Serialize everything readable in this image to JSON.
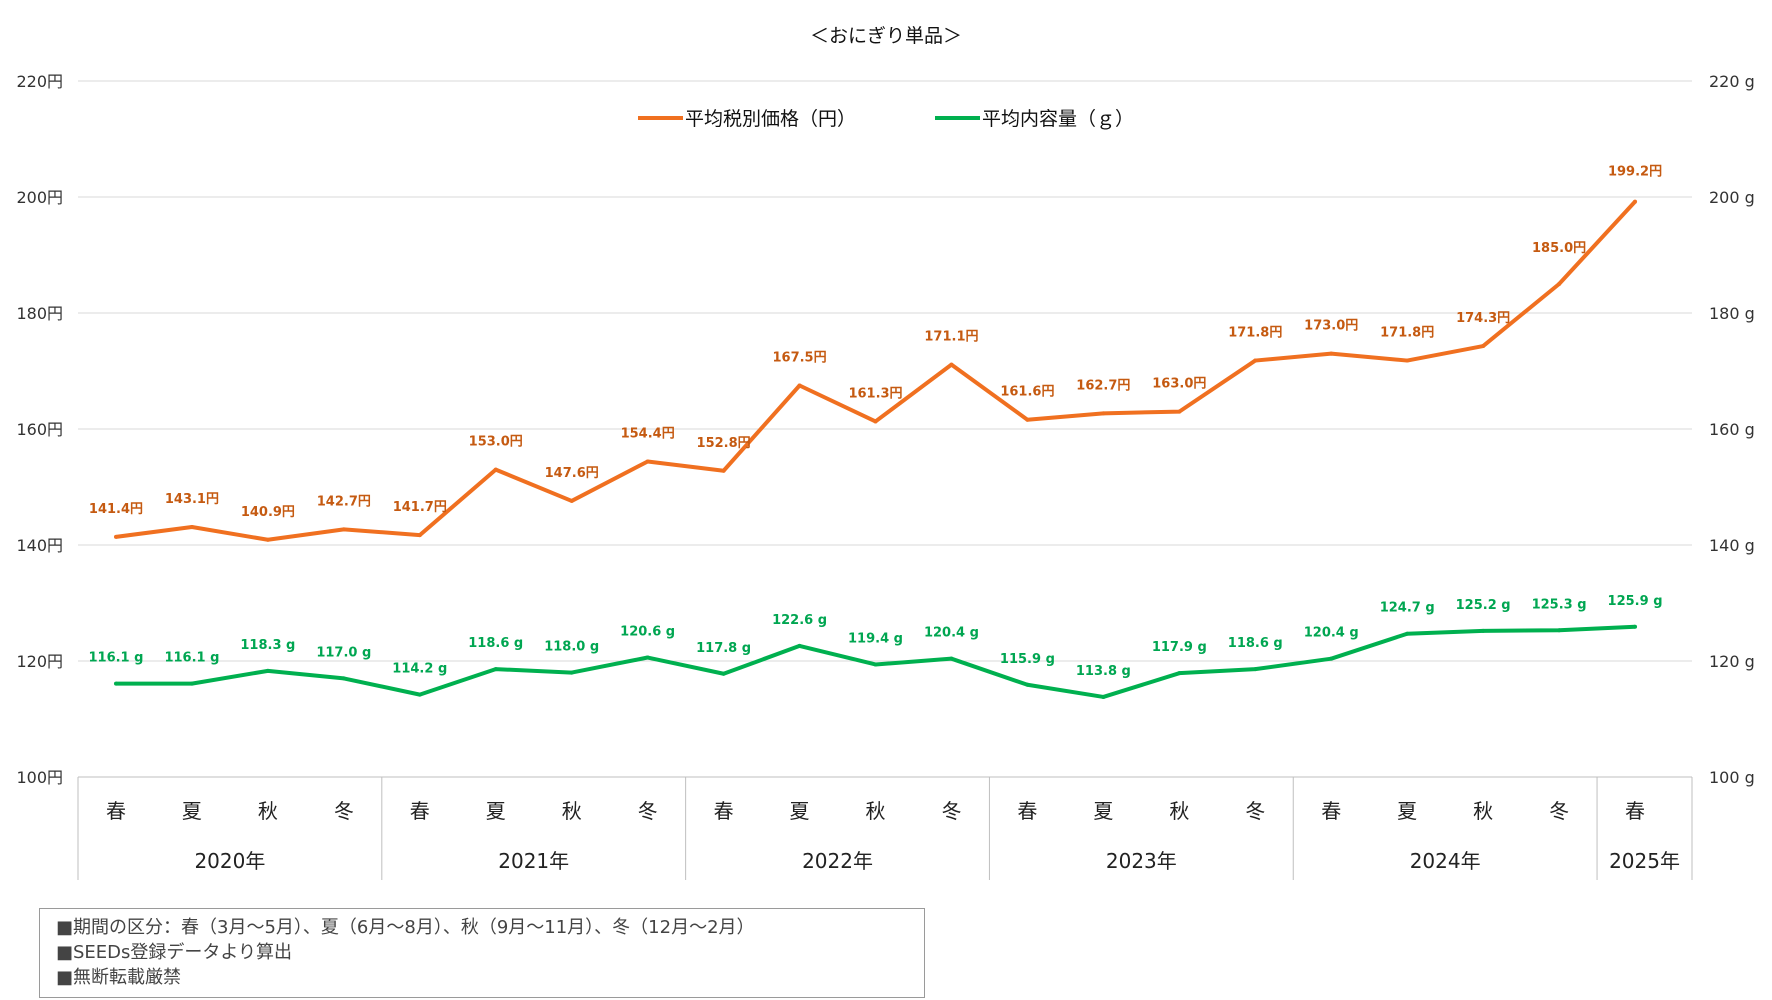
{
  "chart_data": {
    "type": "line",
    "title": "＜おにぎり単品＞",
    "categories": [
      "春",
      "夏",
      "秋",
      "冬",
      "春",
      "夏",
      "秋",
      "冬",
      "春",
      "夏",
      "秋",
      "冬",
      "春",
      "夏",
      "秋",
      "冬",
      "春",
      "夏",
      "秋",
      "冬",
      "春"
    ],
    "years": [
      {
        "label": "2020年",
        "count": 4
      },
      {
        "label": "2021年",
        "count": 4
      },
      {
        "label": "2022年",
        "count": 4
      },
      {
        "label": "2023年",
        "count": 4
      },
      {
        "label": "2024年",
        "count": 4
      },
      {
        "label": "2025年",
        "count": 1
      }
    ],
    "series": [
      {
        "name": "平均税別価格（円）",
        "color": "#F07020",
        "label_color": "#C55A11",
        "unit": "円",
        "values": [
          141.4,
          143.1,
          140.9,
          142.7,
          141.7,
          153.0,
          147.6,
          154.4,
          152.8,
          167.5,
          161.3,
          171.1,
          161.6,
          162.7,
          163.0,
          171.8,
          173.0,
          171.8,
          174.3,
          185.0,
          199.2
        ]
      },
      {
        "name": "平均内容量（ｇ）",
        "color": "#00B04F",
        "label_color": "#00A651",
        "unit": "g",
        "values": [
          116.1,
          116.1,
          118.3,
          117.0,
          114.2,
          118.6,
          118.0,
          120.6,
          117.8,
          122.6,
          119.4,
          120.4,
          115.9,
          113.8,
          117.9,
          118.6,
          120.4,
          124.7,
          125.2,
          125.3,
          125.9
        ]
      }
    ],
    "y_left": {
      "ticks": [
        "100円",
        "120円",
        "140円",
        "160円",
        "180円",
        "200円",
        "220円"
      ],
      "min": 100,
      "max": 220
    },
    "y_right": {
      "ticks": [
        "100 g",
        "120 g",
        "140 g",
        "160 g",
        "180 g",
        "200 g",
        "220 g"
      ],
      "min": 100,
      "max": 220
    },
    "grid": true,
    "legend_position": "top-center"
  },
  "notes": [
    "■期間の区分：春（3月～5月）、夏（6月～8月）、秋（9月～11月）、冬（12月～2月）",
    "■SEEDs登録データより算出",
    "■無断転載厳禁"
  ]
}
